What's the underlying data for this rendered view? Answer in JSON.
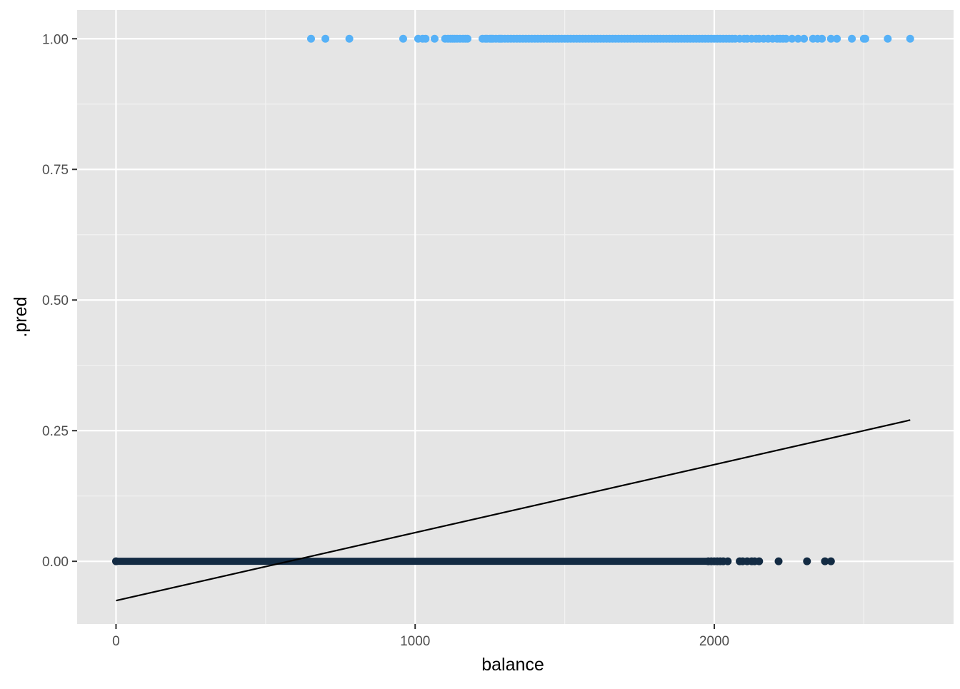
{
  "chart_data": {
    "type": "scatter",
    "title": "",
    "xlabel": "balance",
    "ylabel": ".pred",
    "xlim": [
      -130,
      2800
    ],
    "ylim": [
      -0.12,
      1.055
    ],
    "x_ticks": [
      0,
      1000,
      2000
    ],
    "x_tick_labels": [
      "0",
      "1000",
      "2000"
    ],
    "x_minor_ticks": [
      500,
      1500,
      2500
    ],
    "y_ticks": [
      0,
      0.25,
      0.5,
      0.75,
      1
    ],
    "y_tick_labels": [
      "0.00",
      "0.25",
      "0.50",
      "0.75",
      "1.00"
    ],
    "y_minor_ticks": [
      0.125,
      0.375,
      0.625,
      0.875
    ],
    "grid": true,
    "legend": "none",
    "colors": {
      "panel": "#e5e5e5",
      "grid_major": "#ffffff",
      "grid_minor": "#f2f2f2",
      "axis_text": "#4d4d4d",
      "default_points": "#132b43",
      "default_fill_range": [
        1,
        2385
      ],
      "default_dense_range": [
        1,
        1975
      ],
      "default_outliers": [
        1980,
        1990,
        2000,
        2010,
        2020,
        2030,
        2045,
        2085,
        2095,
        2110,
        2125,
        2135,
        2150,
        2215,
        2310,
        2370,
        2390
      ],
      "default_points_color": "#132b43",
      "fit_line": "#000000",
      "yes_points": "#56b1f7"
    },
    "series": [
      {
        "name": "",
        "y": 1,
        "color": "#56b1f7",
        "x": [
          652,
          700,
          780,
          960,
          1010,
          1025,
          1035,
          1065,
          1100,
          1110,
          1118,
          1125,
          1132,
          1140,
          1150,
          1160,
          1168,
          1175,
          1225,
          1235,
          1240,
          1250,
          1255,
          1260,
          1270,
          1280,
          1285,
          1290,
          1300,
          1310,
          1320,
          1330,
          1340,
          1350,
          1360,
          1370,
          1380,
          1390,
          1400,
          1410,
          1420,
          1430,
          1440,
          1450,
          1460,
          1470,
          1480,
          1490,
          1500,
          1510,
          1520,
          1530,
          1540,
          1550,
          1560,
          1570,
          1580,
          1590,
          1600,
          1610,
          1620,
          1630,
          1640,
          1650,
          1660,
          1670,
          1680,
          1690,
          1700,
          1710,
          1720,
          1730,
          1740,
          1750,
          1760,
          1770,
          1780,
          1790,
          1800,
          1810,
          1820,
          1830,
          1840,
          1850,
          1860,
          1870,
          1880,
          1890,
          1900,
          1910,
          1920,
          1930,
          1940,
          1950,
          1960,
          1970,
          1980,
          1990,
          2000,
          2010,
          2020,
          2030,
          2040,
          2050,
          2060,
          2070,
          2085,
          2100,
          2110,
          2125,
          2140,
          2150,
          2165,
          2180,
          2195,
          2210,
          2220,
          2230,
          2240,
          2260,
          2280,
          2300,
          2330,
          2345,
          2360,
          2390,
          2410,
          2460,
          2500,
          2505,
          2580,
          2655
        ]
      },
      {
        "name": "",
        "y": 0,
        "color": "#132b43",
        "x": [
          0,
          1980,
          1990,
          2000,
          2010,
          2020,
          2030,
          2045,
          2085,
          2095,
          2110,
          2125,
          2135,
          2150,
          2215,
          2310,
          2370,
          2390
        ]
      }
    ],
    "fit_line": {
      "color": "#000000",
      "x": [
        0,
        2655
      ],
      "y": [
        -0.0752,
        0.2703
      ]
    }
  }
}
